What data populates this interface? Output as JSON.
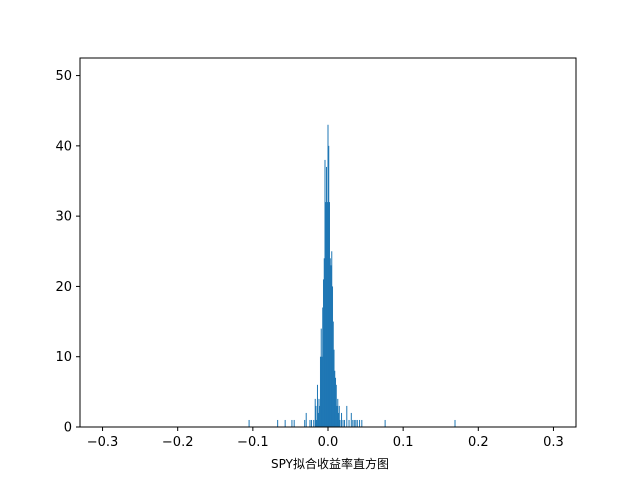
{
  "chart_data": {
    "type": "bar",
    "title": "",
    "xlabel": "SPY拟合收益率直方图",
    "ylabel": "",
    "xlim": [
      -0.33,
      0.33
    ],
    "ylim": [
      0,
      52.5
    ],
    "xticks": [
      -0.3,
      -0.2,
      -0.1,
      0.0,
      0.1,
      0.2,
      0.3
    ],
    "xtick_labels": [
      "−0.3",
      "−0.2",
      "−0.1",
      "0.0",
      "0.1",
      "0.2",
      "0.3"
    ],
    "yticks": [
      0,
      10,
      20,
      30,
      40,
      50
    ],
    "ytick_labels": [
      "0",
      "10",
      "20",
      "30",
      "40",
      "50"
    ],
    "bin_width": 0.001,
    "bar_color": "#1f77b4",
    "grid": false,
    "bins": [
      {
        "x": -0.105,
        "count": 1
      },
      {
        "x": -0.067,
        "count": 1
      },
      {
        "x": -0.057,
        "count": 1
      },
      {
        "x": -0.048,
        "count": 1
      },
      {
        "x": -0.045,
        "count": 1
      },
      {
        "x": -0.031,
        "count": 1
      },
      {
        "x": -0.029,
        "count": 2
      },
      {
        "x": -0.024,
        "count": 1
      },
      {
        "x": -0.022,
        "count": 1
      },
      {
        "x": -0.019,
        "count": 1
      },
      {
        "x": -0.017,
        "count": 4
      },
      {
        "x": -0.016,
        "count": 3
      },
      {
        "x": -0.015,
        "count": 1
      },
      {
        "x": -0.014,
        "count": 6
      },
      {
        "x": -0.013,
        "count": 2
      },
      {
        "x": -0.012,
        "count": 4
      },
      {
        "x": -0.011,
        "count": 3
      },
      {
        "x": -0.01,
        "count": 10
      },
      {
        "x": -0.009,
        "count": 14
      },
      {
        "x": -0.008,
        "count": 10
      },
      {
        "x": -0.007,
        "count": 17
      },
      {
        "x": -0.006,
        "count": 21
      },
      {
        "x": -0.005,
        "count": 24
      },
      {
        "x": -0.004,
        "count": 38
      },
      {
        "x": -0.003,
        "count": 32
      },
      {
        "x": -0.002,
        "count": 37
      },
      {
        "x": -0.001,
        "count": 32
      },
      {
        "x": 0.0,
        "count": 43
      },
      {
        "x": 0.001,
        "count": 40
      },
      {
        "x": 0.002,
        "count": 32
      },
      {
        "x": 0.003,
        "count": 24
      },
      {
        "x": 0.004,
        "count": 23
      },
      {
        "x": 0.005,
        "count": 25
      },
      {
        "x": 0.006,
        "count": 20
      },
      {
        "x": 0.007,
        "count": 15
      },
      {
        "x": 0.008,
        "count": 11
      },
      {
        "x": 0.009,
        "count": 8
      },
      {
        "x": 0.01,
        "count": 7
      },
      {
        "x": 0.011,
        "count": 6
      },
      {
        "x": 0.012,
        "count": 3
      },
      {
        "x": 0.013,
        "count": 4
      },
      {
        "x": 0.014,
        "count": 2
      },
      {
        "x": 0.015,
        "count": 3
      },
      {
        "x": 0.016,
        "count": 1
      },
      {
        "x": 0.018,
        "count": 2
      },
      {
        "x": 0.02,
        "count": 1
      },
      {
        "x": 0.022,
        "count": 1
      },
      {
        "x": 0.025,
        "count": 3
      },
      {
        "x": 0.028,
        "count": 1
      },
      {
        "x": 0.031,
        "count": 2
      },
      {
        "x": 0.033,
        "count": 1
      },
      {
        "x": 0.035,
        "count": 1
      },
      {
        "x": 0.037,
        "count": 1
      },
      {
        "x": 0.039,
        "count": 1
      },
      {
        "x": 0.042,
        "count": 1
      },
      {
        "x": 0.045,
        "count": 1
      },
      {
        "x": 0.076,
        "count": 1
      },
      {
        "x": 0.169,
        "count": 1
      }
    ]
  }
}
